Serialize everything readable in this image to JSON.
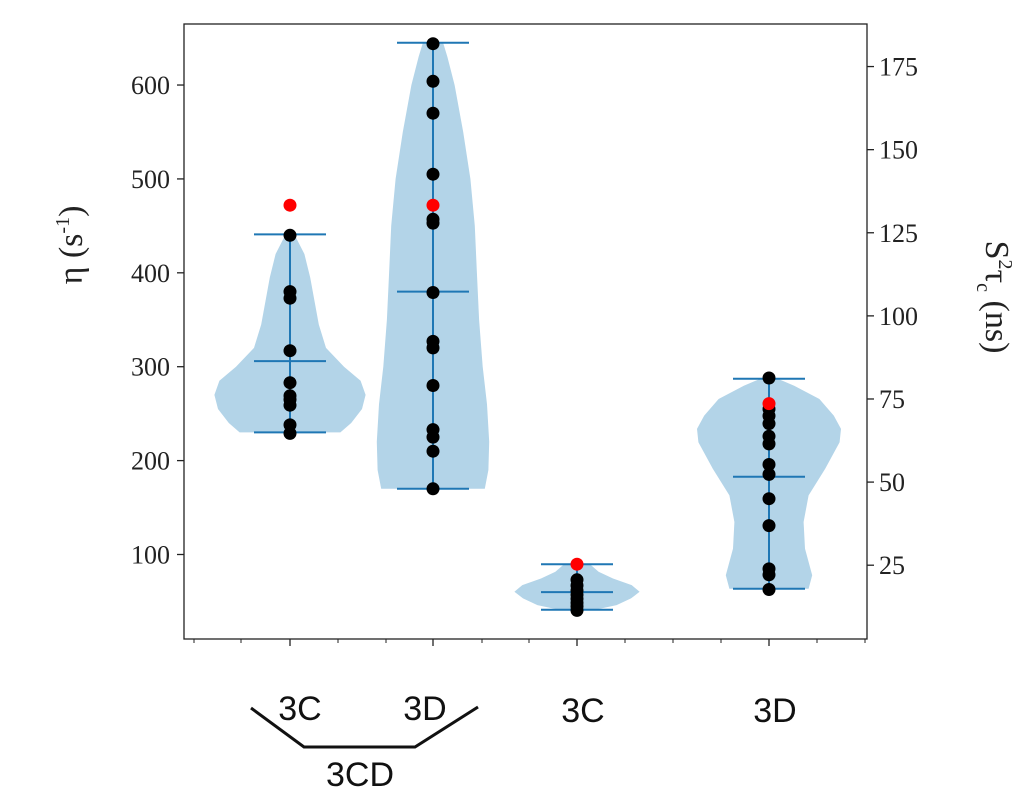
{
  "chart_data": {
    "type": "violin",
    "categories": [
      "3C",
      "3D",
      "3C",
      "3D"
    ],
    "group_label": "3CD",
    "left_axis": {
      "label_base": "η (s",
      "label_sup": "-1",
      "label_end": ")",
      "ylim": [
        10,
        665
      ],
      "ticks": [
        "100",
        "200",
        "300",
        "400",
        "500",
        "600"
      ]
    },
    "right_axis": {
      "label_base": "S",
      "label_sup": "2",
      "label_mid": "τ",
      "label_sub": "c",
      "label_end": " (ns)",
      "ylim": [
        2.8,
        187.8
      ],
      "ticks": [
        "25",
        "50",
        "75",
        "100",
        "125",
        "150",
        "175"
      ]
    },
    "violins": [
      {
        "axis": "left",
        "min": 230,
        "max": 441,
        "median": 306,
        "profile": [
          [
            230,
            0.7
          ],
          [
            240,
            0.85
          ],
          [
            255,
            1.0
          ],
          [
            270,
            1.05
          ],
          [
            285,
            0.98
          ],
          [
            300,
            0.75
          ],
          [
            320,
            0.5
          ],
          [
            345,
            0.4
          ],
          [
            370,
            0.34
          ],
          [
            395,
            0.28
          ],
          [
            420,
            0.2
          ],
          [
            441,
            0.06
          ]
        ],
        "points": [
          229,
          238,
          259,
          265,
          269,
          283,
          317,
          373,
          380,
          440
        ],
        "highlight": 472
      },
      {
        "axis": "left",
        "min": 170,
        "max": 645,
        "median": 380,
        "profile": [
          [
            170,
            0.72
          ],
          [
            190,
            0.77
          ],
          [
            220,
            0.78
          ],
          [
            260,
            0.75
          ],
          [
            300,
            0.69
          ],
          [
            350,
            0.64
          ],
          [
            400,
            0.61
          ],
          [
            450,
            0.58
          ],
          [
            500,
            0.52
          ],
          [
            550,
            0.42
          ],
          [
            600,
            0.3
          ],
          [
            630,
            0.2
          ],
          [
            645,
            0.14
          ]
        ],
        "points": [
          170,
          210,
          225,
          233,
          280,
          320,
          327,
          379,
          453,
          457,
          505,
          570,
          604,
          644
        ],
        "highlight": 472
      },
      {
        "axis": "right",
        "min": 11.6,
        "max": 25.3,
        "median": 16.9,
        "profile": [
          [
            11.6,
            0.25
          ],
          [
            13.0,
            0.55
          ],
          [
            15.0,
            0.75
          ],
          [
            17.0,
            0.87
          ],
          [
            19.0,
            0.76
          ],
          [
            21.0,
            0.5
          ],
          [
            23.0,
            0.3
          ],
          [
            25.3,
            0.18
          ]
        ],
        "points": [
          11.4,
          12.6,
          13.7,
          14.9,
          16.1,
          17.4,
          18.9,
          20.6
        ],
        "highlight": 25.3
      },
      {
        "axis": "right",
        "min": 17.9,
        "max": 81.1,
        "median": 51.6,
        "profile": [
          [
            17.9,
            0.55
          ],
          [
            22,
            0.6
          ],
          [
            30,
            0.5
          ],
          [
            38,
            0.48
          ],
          [
            46,
            0.55
          ],
          [
            54,
            0.78
          ],
          [
            62,
            0.98
          ],
          [
            66,
            1.0
          ],
          [
            70,
            0.9
          ],
          [
            75,
            0.7
          ],
          [
            79,
            0.35
          ],
          [
            81.1,
            0.12
          ]
        ],
        "points": [
          17.7,
          22.1,
          23.9,
          36.9,
          45.0,
          52.3,
          55.3,
          61.5,
          63.8,
          67.6,
          69.9,
          72.0,
          81.3
        ],
        "highlight": 73.6
      }
    ],
    "colors": {
      "violin_fill": "#b3d4e8",
      "line": "#1f77b4",
      "point": "#000000",
      "highlight": "#ff0000"
    }
  }
}
